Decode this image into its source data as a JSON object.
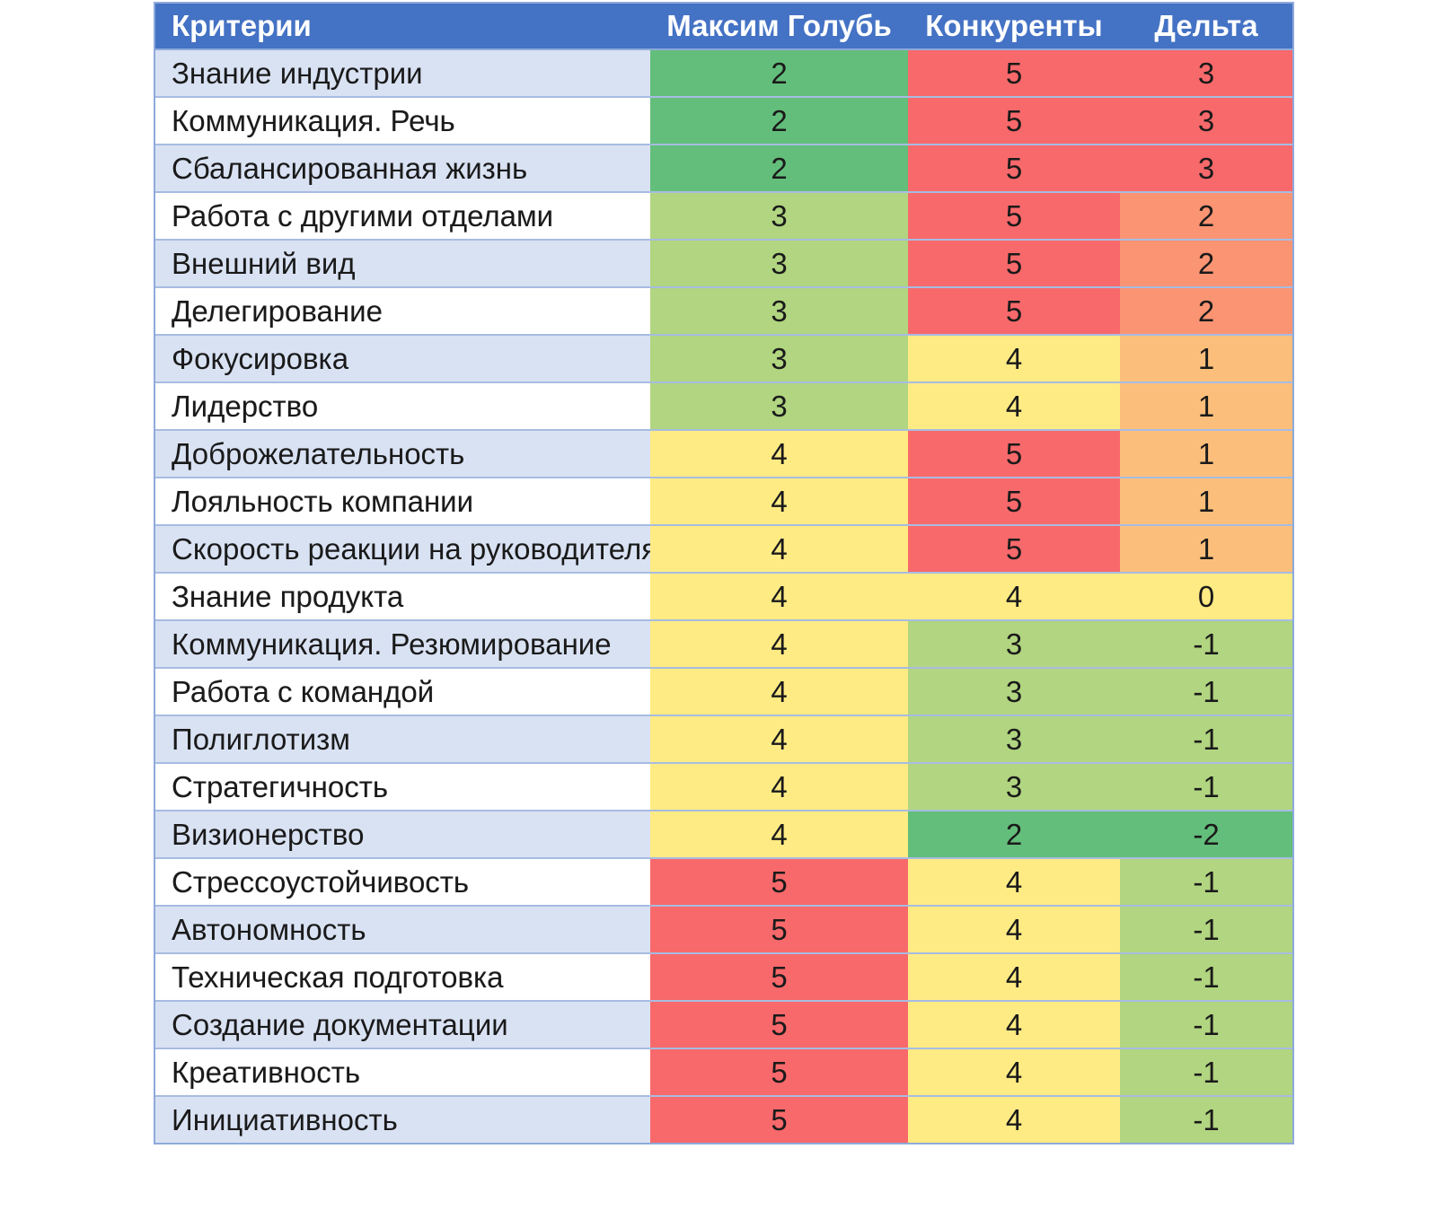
{
  "chart_data": {
    "type": "table",
    "columns": [
      "Критерии",
      "Максим Голубь",
      "Конкуренты",
      "Дельта"
    ],
    "rows": [
      {
        "criterion": "Знание индустрии",
        "maxim": "2",
        "competitors": "5",
        "delta": "3"
      },
      {
        "criterion": "Коммуникация. Речь",
        "maxim": "2",
        "competitors": "5",
        "delta": "3"
      },
      {
        "criterion": "Сбалансированная жизнь",
        "maxim": "2",
        "competitors": "5",
        "delta": "3"
      },
      {
        "criterion": "Работа с другими отделами",
        "maxim": "3",
        "competitors": "5",
        "delta": "2"
      },
      {
        "criterion": "Внешний вид",
        "maxim": "3",
        "competitors": "5",
        "delta": "2"
      },
      {
        "criterion": "Делегирование",
        "maxim": "3",
        "competitors": "5",
        "delta": "2"
      },
      {
        "criterion": "Фокусировка",
        "maxim": "3",
        "competitors": "4",
        "delta": "1"
      },
      {
        "criterion": "Лидерство",
        "maxim": "3",
        "competitors": "4",
        "delta": "1"
      },
      {
        "criterion": "Доброжелательность",
        "maxim": "4",
        "competitors": "5",
        "delta": "1"
      },
      {
        "criterion": "Лояльность компании",
        "maxim": "4",
        "competitors": "5",
        "delta": "1"
      },
      {
        "criterion": "Скорость реакции на руководителя",
        "maxim": "4",
        "competitors": "5",
        "delta": "1"
      },
      {
        "criterion": "Знание продукта",
        "maxim": "4",
        "competitors": "4",
        "delta": "0"
      },
      {
        "criterion": "Коммуникация. Резюмирование",
        "maxim": "4",
        "competitors": "3",
        "delta": "-1"
      },
      {
        "criterion": "Работа с командой",
        "maxim": "4",
        "competitors": "3",
        "delta": "-1"
      },
      {
        "criterion": "Полиглотизм",
        "maxim": "4",
        "competitors": "3",
        "delta": "-1"
      },
      {
        "criterion": "Стратегичность",
        "maxim": "4",
        "competitors": "3",
        "delta": "-1"
      },
      {
        "criterion": "Визионерство",
        "maxim": "4",
        "competitors": "2",
        "delta": "-2"
      },
      {
        "criterion": "Стрессоустойчивость",
        "maxim": "5",
        "competitors": "4",
        "delta": "-1"
      },
      {
        "criterion": "Автономность",
        "maxim": "5",
        "competitors": "4",
        "delta": "-1"
      },
      {
        "criterion": "Техническая подготовка",
        "maxim": "5",
        "competitors": "4",
        "delta": "-1"
      },
      {
        "criterion": "Создание документации",
        "maxim": "5",
        "competitors": "4",
        "delta": "-1"
      },
      {
        "criterion": "Креативность",
        "maxim": "5",
        "competitors": "4",
        "delta": "-1"
      },
      {
        "criterion": "Инициативность",
        "maxim": "5",
        "competitors": "4",
        "delta": "-1"
      }
    ]
  },
  "colors": {
    "header_bg": "#4472c4",
    "header_text": "#ffffff",
    "row_alt_bg": "#d9e2f3",
    "score_2": "#63be7b",
    "score_3": "#b1d580",
    "score_4": "#ffeb84",
    "score_5": "#f8696b",
    "delta_3": "#f8696b",
    "delta_2": "#fa9473",
    "delta_1": "#fcbf7b",
    "delta_0": "#ffeb84",
    "delta_-1": "#b1d580",
    "delta_-2": "#63be7b"
  }
}
